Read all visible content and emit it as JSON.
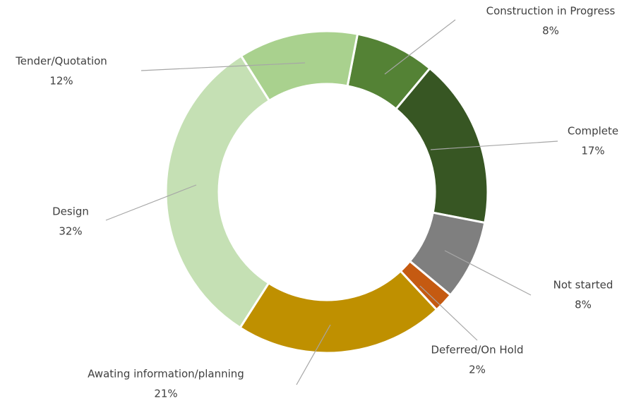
{
  "chart_data": {
    "type": "donut",
    "categories": [
      "Construction in Progress",
      "Complete",
      "Not started",
      "Deferred/On Hold",
      "Awating information/planning",
      "Design",
      "Tender/Quotation"
    ],
    "values": [
      8,
      17,
      8,
      2,
      21,
      32,
      12
    ],
    "value_labels": [
      "8%",
      "17%",
      "8%",
      "2%",
      "21%",
      "32%",
      "12%"
    ],
    "colors": [
      "#548235",
      "#375623",
      "#7f7f7f",
      "#c55a11",
      "#bf9000",
      "#c5e0b4",
      "#a9d18e"
    ]
  }
}
